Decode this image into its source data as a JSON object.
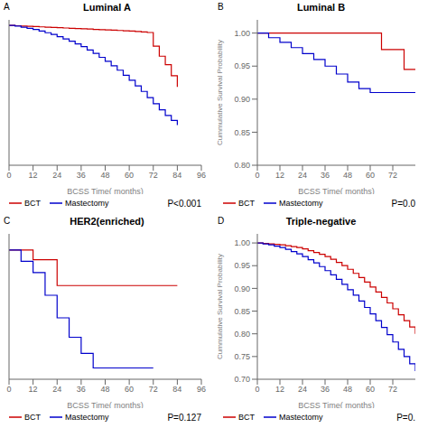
{
  "chart_data": [
    {
      "type": "step",
      "title": "Luminal A",
      "annotations": [
        "A",
        "P<0.001"
      ],
      "xlabel": "BCSS Time( months)",
      "xlim": [
        0,
        96
      ],
      "xticks": [
        0,
        12,
        24,
        36,
        48,
        60,
        72,
        84,
        96
      ],
      "ylim": [
        0.75,
        1.01
      ],
      "tick_labels": "x",
      "grid": false,
      "legend": "lower left",
      "series": [
        {
          "name": "BCT",
          "color": "#cc0000",
          "x": [
            0,
            3,
            6,
            9,
            12,
            15,
            18,
            21,
            24,
            27,
            30,
            33,
            36,
            39,
            42,
            45,
            48,
            51,
            54,
            57,
            60,
            63,
            66,
            69,
            72,
            75,
            78,
            81,
            84
          ],
          "values": [
            1.0,
            0.9995,
            0.999,
            0.9985,
            0.998,
            0.9975,
            0.997,
            0.9965,
            0.996,
            0.9955,
            0.995,
            0.9945,
            0.994,
            0.9935,
            0.993,
            0.9925,
            0.992,
            0.9915,
            0.991,
            0.9905,
            0.99,
            0.9892,
            0.9883,
            0.9874,
            0.963,
            0.945,
            0.93,
            0.91,
            0.89
          ]
        },
        {
          "name": "Mastectomy",
          "color": "#0000cc",
          "x": [
            0,
            3,
            6,
            9,
            12,
            15,
            18,
            21,
            24,
            27,
            30,
            33,
            36,
            39,
            42,
            45,
            48,
            51,
            54,
            57,
            60,
            63,
            66,
            69,
            72,
            75,
            78,
            81,
            84
          ],
          "values": [
            1.0,
            0.999,
            0.997,
            0.995,
            0.993,
            0.99,
            0.987,
            0.984,
            0.98,
            0.976,
            0.972,
            0.967,
            0.962,
            0.956,
            0.95,
            0.943,
            0.936,
            0.928,
            0.92,
            0.911,
            0.902,
            0.892,
            0.882,
            0.871,
            0.86,
            0.849,
            0.839,
            0.83,
            0.822
          ]
        }
      ]
    },
    {
      "type": "step",
      "title": "Luminal B",
      "annotations": [
        "B",
        "P=0.0"
      ],
      "xlabel": "BCSS Time( months)",
      "ylabel": "Cummulative Survival Probability",
      "xlim": [
        0,
        84
      ],
      "xticks": [
        0,
        12,
        24,
        36,
        48,
        60,
        72
      ],
      "ylim": [
        0.8,
        1.02
      ],
      "yticks": [
        {
          "value": 0.8,
          "label": "0.80"
        },
        0.85,
        {
          "value": 0.9,
          "label": "0.90"
        },
        0.95,
        {
          "value": 1.0,
          "label": "1.00"
        }
      ],
      "grid": false,
      "legend": "lower left",
      "series": [
        {
          "name": "BCT",
          "color": "#cc0000",
          "x": [
            0,
            12,
            24,
            36,
            48,
            60,
            66,
            72,
            78,
            84
          ],
          "values": [
            1.0,
            1.0,
            1.0,
            1.0,
            1.0,
            1.0,
            0.975,
            0.975,
            0.945,
            0.945
          ]
        },
        {
          "name": "Mastectomy",
          "color": "#0000cc",
          "x": [
            0,
            6,
            12,
            18,
            24,
            30,
            36,
            42,
            48,
            54,
            60,
            66,
            72,
            78,
            84
          ],
          "values": [
            1.0,
            0.993,
            0.986,
            0.978,
            0.969,
            0.96,
            0.95,
            0.938,
            0.926,
            0.916,
            0.91,
            0.91,
            0.91,
            0.91,
            0.91
          ]
        }
      ]
    },
    {
      "type": "step",
      "title": "HER2(enriched)",
      "annotations": [
        "C",
        "P=0.127"
      ],
      "xlabel": "BCSS Time( months)",
      "xlim": [
        0,
        96
      ],
      "xticks": [
        0,
        12,
        24,
        36,
        48,
        60,
        72,
        84,
        96
      ],
      "ylim": [
        0.6,
        1.05
      ],
      "tick_labels": "x",
      "grid": false,
      "legend": "lower left",
      "series": [
        {
          "name": "BCT",
          "color": "#cc0000",
          "x": [
            0,
            12,
            24,
            36,
            48,
            60,
            72,
            84
          ],
          "values": [
            1.0,
            0.97,
            0.89,
            0.89,
            0.89,
            0.89,
            0.89,
            0.89
          ]
        },
        {
          "name": "Mastectomy",
          "color": "#0000cc",
          "x": [
            0,
            6,
            12,
            18,
            24,
            30,
            36,
            42,
            48,
            60,
            72
          ],
          "values": [
            1.0,
            0.965,
            0.93,
            0.86,
            0.79,
            0.73,
            0.68,
            0.635,
            0.635,
            0.635,
            0.635
          ]
        }
      ]
    },
    {
      "type": "step",
      "title": "Triple-negative",
      "annotations": [
        "D",
        "P=0."
      ],
      "xlabel": "BCSS Time( months)",
      "ylabel": "Cummulative Survival Probability",
      "xlim": [
        0,
        84
      ],
      "xticks": [
        0,
        12,
        24,
        36,
        48,
        60,
        72
      ],
      "ylim": [
        0.7,
        1.02
      ],
      "yticks": [
        {
          "value": 0.7,
          "label": "0.70"
        },
        0.75,
        {
          "value": 0.8,
          "label": "0.80"
        },
        0.85,
        {
          "value": 0.9,
          "label": "0.90"
        },
        0.95,
        {
          "value": 1.0,
          "label": "1.00"
        }
      ],
      "grid": false,
      "legend": "lower left",
      "series": [
        {
          "name": "BCT",
          "color": "#cc0000",
          "x": [
            0,
            3,
            6,
            9,
            12,
            15,
            18,
            21,
            24,
            27,
            30,
            33,
            36,
            39,
            42,
            45,
            48,
            51,
            54,
            57,
            60,
            63,
            66,
            69,
            72,
            75,
            78,
            81,
            84
          ],
          "values": [
            1.0,
            0.999,
            0.998,
            0.997,
            0.996,
            0.994,
            0.992,
            0.99,
            0.987,
            0.983,
            0.979,
            0.975,
            0.97,
            0.964,
            0.957,
            0.95,
            0.942,
            0.933,
            0.924,
            0.914,
            0.903,
            0.892,
            0.88,
            0.868,
            0.855,
            0.842,
            0.829,
            0.815,
            0.8
          ]
        },
        {
          "name": "Mastectomy",
          "color": "#0000cc",
          "x": [
            0,
            3,
            6,
            9,
            12,
            15,
            18,
            21,
            24,
            27,
            30,
            33,
            36,
            39,
            42,
            45,
            48,
            51,
            54,
            57,
            60,
            63,
            66,
            69,
            72,
            75,
            78,
            81,
            84
          ],
          "values": [
            1.0,
            0.998,
            0.996,
            0.993,
            0.99,
            0.986,
            0.981,
            0.976,
            0.97,
            0.963,
            0.956,
            0.948,
            0.939,
            0.93,
            0.92,
            0.909,
            0.897,
            0.885,
            0.872,
            0.858,
            0.844,
            0.829,
            0.814,
            0.798,
            0.782,
            0.766,
            0.75,
            0.734,
            0.718
          ]
        }
      ]
    }
  ]
}
